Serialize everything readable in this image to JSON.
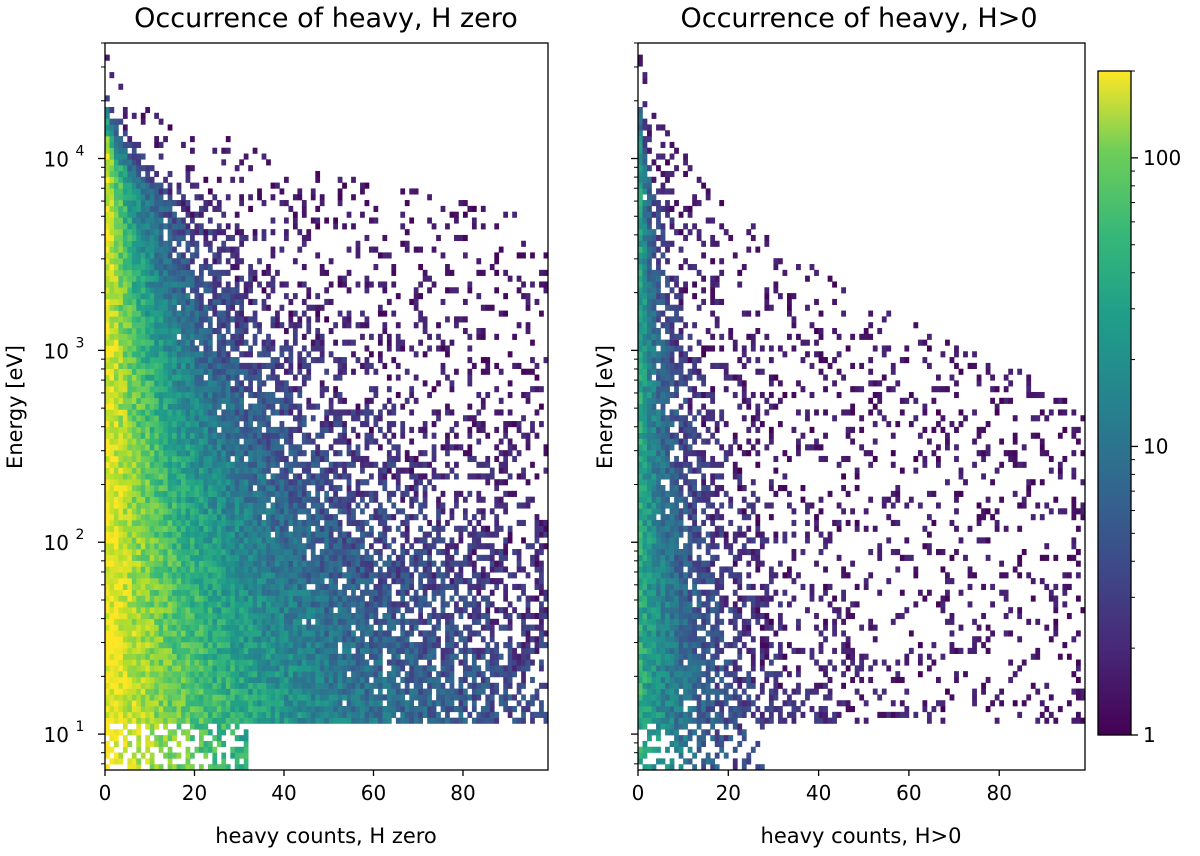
{
  "chart_data": {
    "type": "heatmap",
    "figure_description": "Two 2D histograms (log color scale) of occurrence of heavy counts vs energy",
    "colorbar": {
      "scale": "log",
      "colormap": "viridis",
      "range": [
        1,
        200
      ],
      "ticks": [
        1,
        10,
        100
      ],
      "tick_labels": [
        "1",
        "10",
        "100"
      ]
    },
    "panels": [
      {
        "id": "h-zero",
        "title": "Occurrence of heavy, H zero",
        "xlabel": "heavy counts, H zero",
        "ylabel": "Energy [eV]",
        "xlim": [
          0,
          99
        ],
        "ylim": [
          6.5,
          40000
        ],
        "yscale": "log",
        "xticks": [
          0,
          20,
          40,
          60,
          80
        ],
        "xtick_labels": [
          "0",
          "20",
          "40",
          "60",
          "80"
        ],
        "yticks": [
          10,
          100,
          1000,
          10000
        ],
        "ytick_labels": [
          "10",
          "10",
          "10",
          "10"
        ],
        "ytick_exponents": [
          "1",
          "2",
          "3",
          "4"
        ],
        "energy_cutoff_low": 11,
        "density": {
          "peak": 200,
          "x_spread_at_low_energy": 60,
          "x_spread_at_high_energy": 5,
          "max_energy_at_x0": 30000,
          "max_energy_at_x99": 3500
        }
      },
      {
        "id": "h-positive",
        "title": "Occurrence of heavy, H>0",
        "xlabel": "heavy counts, H>0",
        "ylabel": "Energy [eV]",
        "xlim": [
          0,
          99
        ],
        "ylim": [
          6.5,
          40000
        ],
        "yscale": "log",
        "xticks": [
          0,
          20,
          40,
          60,
          80
        ],
        "xtick_labels": [
          "0",
          "20",
          "40",
          "60",
          "80"
        ],
        "yticks": [
          10,
          100,
          1000,
          10000
        ],
        "ytick_labels": [
          "",
          "",
          "",
          ""
        ],
        "ytick_exponents": [
          "",
          "",
          "",
          ""
        ],
        "energy_cutoff_low": 11,
        "density": {
          "peak": 30,
          "x_spread_at_low_energy": 18,
          "x_spread_at_high_energy": 2,
          "max_energy_at_x0": 40000,
          "max_energy_at_x99": 400
        }
      }
    ]
  }
}
